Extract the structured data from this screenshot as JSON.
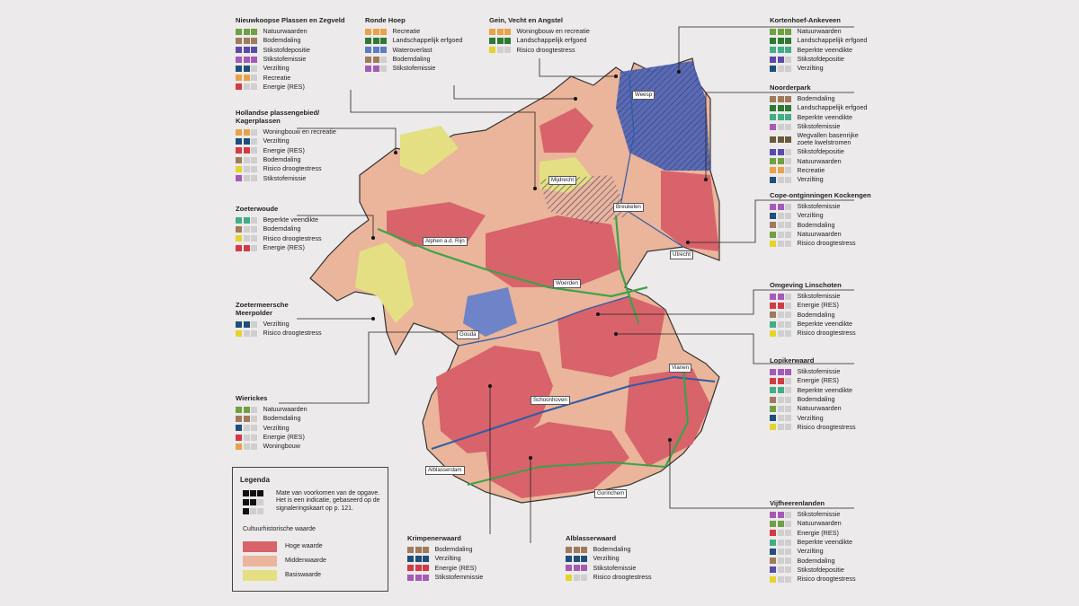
{
  "colors": {
    "natuur": "#6fa041",
    "bodem": "#a07a5a",
    "stikstofdepositie": "#5b4aa8",
    "stikstofemissie": "#a55bb5",
    "verzilting": "#1e4f7a",
    "recreatie": "#e9a24a",
    "energie": "#d23a46",
    "woningbouw": "#e9a24a",
    "landschap": "#2e7a34",
    "wateroverlast": "#5c7cc4",
    "droogte": "#e5d32a",
    "veendikte": "#43ad86",
    "kwel": "#6b5a3a",
    "empty": "#cfcfcf",
    "hoge": "#d8636b",
    "midden": "#eab59a",
    "basis": "#e3df82"
  },
  "panels": [
    {
      "title": "Nieuwkoopse Plassen en Zegveld",
      "rows": [
        [
          "Natuurwaarden",
          "natuur",
          3
        ],
        [
          "Bodemdaling",
          "bodem",
          3
        ],
        [
          "Stikstofdepositie",
          "stikstofdepositie",
          3
        ],
        [
          "Stikstofemissie",
          "stikstofemissie",
          3
        ],
        [
          "Verzilting",
          "verzilting",
          2
        ],
        [
          "Recreatie",
          "recreatie",
          2
        ],
        [
          "Energie (RES)",
          "energie",
          1
        ]
      ]
    },
    {
      "title": "Ronde Hoep",
      "rows": [
        [
          "Recreatie",
          "recreatie",
          3
        ],
        [
          "Landschappelijk erfgoed",
          "landschap",
          3
        ],
        [
          "Wateroverlast",
          "wateroverlast",
          3
        ],
        [
          "Bodemdaling",
          "bodem",
          2
        ],
        [
          "Stikstofemissie",
          "stikstofemissie",
          2
        ]
      ]
    },
    {
      "title": "Gein, Vecht en Angstel",
      "rows": [
        [
          "Woningbouw en recreatie",
          "woningbouw",
          3
        ],
        [
          "Landschappelijk erfgoed",
          "landschap",
          3
        ],
        [
          "Risico droogtestress",
          "droogte",
          1
        ]
      ]
    },
    {
      "title": "Kortenhoef-Ankeveen",
      "rows": [
        [
          "Natuurwaarden",
          "natuur",
          3
        ],
        [
          "Landschappelijk erfgoed",
          "landschap",
          3
        ],
        [
          "Beperkte veendikte",
          "veendikte",
          3
        ],
        [
          "Stikstofdepositie",
          "stikstofdepositie",
          2
        ],
        [
          "Verzilting",
          "verzilting",
          1
        ]
      ]
    },
    {
      "title": "Hollandse plassengebied/\nKagerplassen",
      "rows": [
        [
          "Woningbouw en recreatie",
          "woningbouw",
          2
        ],
        [
          "Verzilting",
          "verzilting",
          2
        ],
        [
          "Energie (RES)",
          "energie",
          2
        ],
        [
          "Bodemdaling",
          "bodem",
          1
        ],
        [
          "Risico droogtestress",
          "droogte",
          1
        ],
        [
          "Stikstofemissie",
          "stikstofemissie",
          1
        ]
      ]
    },
    {
      "title": "Noorderpark",
      "rows": [
        [
          "Bodemdaling",
          "bodem",
          3
        ],
        [
          "Landschappelijk erfgoed",
          "landschap",
          3
        ],
        [
          "Beperkte veendikte",
          "veendikte",
          3
        ],
        [
          "Stikstofemissie",
          "stikstofemissie",
          1
        ],
        [
          "Wegvallen basenrijke\nzoete kwelstromen",
          "kwel",
          3
        ],
        [
          "Stikstofdepositie",
          "stikstofdepositie",
          2
        ],
        [
          "Natuurwaarden",
          "natuur",
          2
        ],
        [
          "Recreatie",
          "recreatie",
          2
        ],
        [
          "Verzilting",
          "verzilting",
          1
        ]
      ]
    },
    {
      "title": "Zoeterwoude",
      "rows": [
        [
          "Beperkte veendikte",
          "veendikte",
          2
        ],
        [
          "Bodemdaling",
          "bodem",
          1
        ],
        [
          "Risico droogtestress",
          "droogte",
          1
        ],
        [
          "Energie (RES)",
          "energie",
          2
        ]
      ]
    },
    {
      "title": "Cope-ontginningen Kockengen",
      "rows": [
        [
          "Stikstofemissie",
          "stikstofemissie",
          2
        ],
        [
          "Verzilting",
          "verzilting",
          1
        ],
        [
          "Bodemdaling",
          "bodem",
          1
        ],
        [
          "Natuurwaarden",
          "natuur",
          1
        ],
        [
          "Risico droogtestress",
          "droogte",
          1
        ]
      ]
    },
    {
      "title": "Zoetermeersche\nMeerpolder",
      "rows": [
        [
          "Verzilting",
          "verzilting",
          2
        ],
        [
          "Risico droogtestress",
          "droogte",
          1
        ]
      ]
    },
    {
      "title": "Omgeving Linschoten",
      "rows": [
        [
          "Stikstofemissie",
          "stikstofemissie",
          2
        ],
        [
          "Energie (RES)",
          "energie",
          2
        ],
        [
          "Bodemdaling",
          "bodem",
          1
        ],
        [
          "Beperkte veendikte",
          "veendikte",
          1
        ],
        [
          "Risico droogtestress",
          "droogte",
          1
        ]
      ]
    },
    {
      "title": "Lopikerwaard",
      "rows": [
        [
          "Stikstofemissie",
          "stikstofemissie",
          3
        ],
        [
          "Energie (RES)",
          "energie",
          2
        ],
        [
          "Beperkte veendikte",
          "veendikte",
          2
        ],
        [
          "Bodemdaling",
          "bodem",
          1
        ],
        [
          "Natuurwaarden",
          "natuur",
          1
        ],
        [
          "Verzilting",
          "verzilting",
          1
        ],
        [
          "Risico droogtestress",
          "droogte",
          1
        ]
      ]
    },
    {
      "title": "Wierickes",
      "rows": [
        [
          "Natuurwaarden",
          "natuur",
          2
        ],
        [
          "Bodemdaling",
          "bodem",
          2
        ],
        [
          "Verzilting",
          "verzilting",
          1
        ],
        [
          "Energie (RES)",
          "energie",
          1
        ],
        [
          "Woningbouw",
          "woningbouw",
          1
        ]
      ]
    },
    {
      "title": "Krimpenerwaard",
      "rows": [
        [
          "Bodemdaling",
          "bodem",
          3
        ],
        [
          "Verzilting",
          "verzilting",
          3
        ],
        [
          "Energie (RES)",
          "energie",
          3
        ],
        [
          "Stikstofemmissie",
          "stikstofemissie",
          3
        ]
      ]
    },
    {
      "title": "Alblasserwaard",
      "rows": [
        [
          "Bodemdaling",
          "bodem",
          3
        ],
        [
          "Verzilting",
          "verzilting",
          3
        ],
        [
          "Stikstofemissie",
          "stikstofemissie",
          3
        ],
        [
          "Risico droogtestress",
          "droogte",
          1
        ]
      ]
    },
    {
      "title": "Vijfheerenlanden",
      "rows": [
        [
          "Stikstofemissie",
          "stikstofemissie",
          2
        ],
        [
          "Natuurwaarden",
          "natuur",
          2
        ],
        [
          "Energie (RES)",
          "energie",
          1
        ],
        [
          "Beperkte veendikte",
          "veendikte",
          1
        ],
        [
          "Verzilting",
          "verzilting",
          1
        ],
        [
          "Bodemdaling",
          "bodem",
          1
        ],
        [
          "Stikstofdepositie",
          "stikstofdepositie",
          1
        ],
        [
          "Risico droogtestress",
          "droogte",
          1
        ]
      ]
    }
  ],
  "towns": [
    "Weesp",
    "Mijdrecht",
    "Breukelen",
    "Alphen a.d. Rijn",
    "Utrecht",
    "Woerden",
    "Gouda",
    "Vianen",
    "Schoonhoven",
    "Alblasserdam",
    "Gorinchem"
  ],
  "legend": {
    "title": "Legenda",
    "description": "Mate van voorkomen van de opgave. Het is een indicatie, gebaseerd op de signaleringskaart op p. 121.",
    "subtitle": "Cultuurhistorische waarde",
    "items": [
      [
        "Hoge waarde",
        "hoge"
      ],
      [
        "Middenwaarde",
        "midden"
      ],
      [
        "Basiswaarde",
        "basis"
      ]
    ]
  }
}
